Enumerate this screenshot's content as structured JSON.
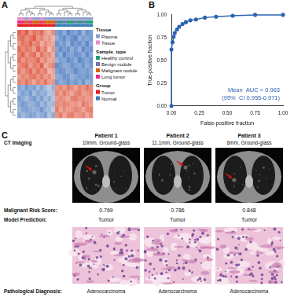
{
  "panel_labels": [
    "A",
    "B",
    "C"
  ],
  "heatmap": {
    "type": "heatmap",
    "color_range": [
      -2,
      2
    ],
    "colors": [
      "#4a7cc4",
      "#f7f4f0",
      "#e0553f"
    ],
    "cells": [
      [
        1.8,
        1.5,
        1.9,
        1.2,
        1.6,
        1.4,
        1.7,
        1.1,
        0.9,
        1.3,
        -1.4,
        -1.6,
        -1.2,
        -1.8,
        -1.5,
        -1.3,
        -1.7,
        -1.1,
        -1.6,
        -1.4
      ],
      [
        1.5,
        1.7,
        1.3,
        1.6,
        1.9,
        1.2,
        1.4,
        1.0,
        1.2,
        0.8,
        -1.2,
        -1.5,
        -1.7,
        -1.3,
        -1.6,
        -1.8,
        -1.2,
        -1.4,
        -1.3,
        -1.5
      ],
      [
        1.2,
        1.6,
        1.4,
        1.8,
        1.3,
        1.5,
        0.9,
        1.3,
        1.1,
        1.0,
        -1.6,
        -1.3,
        -1.5,
        -1.1,
        -1.7,
        -1.4,
        -1.6,
        -1.3,
        -1.8,
        -1.2
      ],
      [
        1.7,
        1.3,
        1.6,
        1.4,
        1.1,
        1.8,
        1.2,
        1.5,
        0.7,
        1.2,
        -1.3,
        -1.7,
        -1.4,
        -1.6,
        -1.2,
        -1.5,
        -1.1,
        -1.7,
        -1.4,
        -1.6
      ],
      [
        1.4,
        1.8,
        1.2,
        1.5,
        1.7,
        1.0,
        1.6,
        1.2,
        1.3,
        0.9,
        -1.5,
        -1.2,
        -1.8,
        -1.4,
        -1.3,
        -1.6,
        -1.5,
        -1.2,
        -1.7,
        -1.3
      ],
      [
        1.6,
        1.2,
        1.5,
        1.3,
        1.4,
        1.7,
        1.1,
        1.4,
        1.0,
        1.1,
        -1.1,
        -1.4,
        -1.3,
        -1.7,
        -1.5,
        -1.2,
        -1.8,
        -1.5,
        -1.3,
        -1.6
      ],
      [
        1.3,
        1.5,
        1.7,
        1.1,
        1.5,
        1.3,
        1.8,
        0.9,
        1.2,
        1.4,
        -1.7,
        -1.5,
        -1.2,
        -1.3,
        -1.6,
        -1.4,
        -1.3,
        -1.6,
        -1.2,
        -1.5
      ],
      [
        1.5,
        1.1,
        1.4,
        1.7,
        1.2,
        1.6,
        1.3,
        1.5,
        0.8,
        1.0,
        -1.4,
        -1.6,
        -1.5,
        -1.2,
        -1.4,
        -1.7,
        -1.4,
        -1.3,
        -1.5,
        -1.2
      ],
      [
        1.1,
        1.4,
        1.2,
        1.5,
        1.6,
        1.2,
        1.5,
        1.1,
        1.3,
        0.9,
        -1.2,
        -1.3,
        -1.6,
        -1.5,
        -1.1,
        -1.3,
        -1.5,
        -1.4,
        -1.6,
        -1.4
      ],
      [
        1.4,
        1.2,
        1.6,
        1.3,
        1.0,
        1.4,
        1.2,
        1.6,
        1.1,
        1.2,
        -1.5,
        -1.2,
        -1.4,
        -1.6,
        -1.3,
        -1.5,
        -1.2,
        -1.6,
        -1.1,
        -1.3
      ],
      [
        -1.3,
        -1.1,
        -1.5,
        -1.2,
        -1.4,
        -1.0,
        -1.3,
        -0.9,
        -0.7,
        -1.1,
        1.2,
        1.4,
        1.1,
        1.5,
        1.3,
        1.0,
        1.4,
        1.2,
        1.6,
        1.3
      ],
      [
        -1.1,
        -1.4,
        -1.2,
        -1.5,
        -1.0,
        -1.3,
        -1.1,
        -1.2,
        -0.8,
        -0.9,
        1.4,
        1.1,
        1.5,
        1.2,
        1.0,
        1.3,
        1.5,
        1.1,
        1.2,
        1.4
      ],
      [
        -1.4,
        -1.2,
        -1.0,
        -1.3,
        -1.5,
        -1.1,
        -1.4,
        -1.0,
        -1.2,
        -0.8,
        1.1,
        1.3,
        1.2,
        1.0,
        1.4,
        1.5,
        1.2,
        1.3,
        1.1,
        1.2
      ],
      [
        -1.2,
        -1.5,
        -1.3,
        -1.1,
        -1.2,
        -1.4,
        -1.0,
        -1.3,
        -0.9,
        -1.0,
        1.3,
        1.2,
        1.4,
        1.3,
        1.1,
        1.2,
        1.0,
        1.5,
        1.3,
        1.1
      ],
      [
        -1.0,
        -1.3,
        -1.4,
        -1.2,
        -1.1,
        -1.2,
        -1.5,
        -1.1,
        -1.0,
        -0.7,
        1.5,
        1.0,
        1.3,
        1.1,
        1.2,
        1.4,
        1.3,
        1.0,
        1.4,
        1.5
      ],
      [
        -1.3,
        -1.0,
        -1.2,
        -1.4,
        -1.3,
        -1.0,
        -1.2,
        -1.4,
        -0.8,
        -1.2,
        1.2,
        1.5,
        1.0,
        1.4,
        1.5,
        1.1,
        1.2,
        1.4,
        1.0,
        1.3
      ]
    ],
    "annotations": [
      {
        "name": "Tissue",
        "levels": [
          {
            "label": "Plasma",
            "color": "#8da0cb"
          },
          {
            "label": "Tissue",
            "color": "#e78ac3"
          }
        ],
        "values": [
          "Tissue",
          "Tissue",
          "Plasma",
          "Tissue",
          "Plasma",
          "Plasma",
          "Tissue",
          "Plasma",
          "Plasma",
          "Plasma",
          "Plasma",
          "Plasma",
          "Plasma",
          "Plasma",
          "Plasma",
          "Plasma",
          "Plasma",
          "Plasma",
          "Plasma",
          "Plasma"
        ]
      },
      {
        "name": "Sample_type",
        "levels": [
          {
            "label": "Healthy control",
            "color": "#1b9e77"
          },
          {
            "label": "Benign nodule",
            "color": "#7570b3"
          },
          {
            "label": "Malignant nodule",
            "color": "#d95f02"
          },
          {
            "label": "Lung tumor",
            "color": "#e7298a"
          }
        ],
        "values": [
          "Lung tumor",
          "Lung tumor",
          "Malignant nodule",
          "Lung tumor",
          "Malignant nodule",
          "Malignant nodule",
          "Lung tumor",
          "Malignant nodule",
          "Malignant nodule",
          "Malignant nodule",
          "Benign nodule",
          "Healthy control",
          "Benign nodule",
          "Healthy control",
          "Healthy control",
          "Benign nodule",
          "Healthy control",
          "Benign nodule",
          "Healthy control",
          "Healthy control"
        ]
      },
      {
        "name": "Group",
        "levels": [
          {
            "label": "Tumor",
            "color": "#e41a1c"
          },
          {
            "label": "Normal",
            "color": "#377eb8"
          }
        ],
        "values": [
          "Tumor",
          "Tumor",
          "Tumor",
          "Tumor",
          "Tumor",
          "Tumor",
          "Tumor",
          "Tumor",
          "Tumor",
          "Tumor",
          "Normal",
          "Normal",
          "Normal",
          "Normal",
          "Normal",
          "Normal",
          "Normal",
          "Normal",
          "Normal",
          "Normal"
        ]
      }
    ]
  },
  "chart_data": {
    "type": "line",
    "x_label": "False-positive fraction",
    "y_label": "True-positive fraction",
    "x": [
      0,
      0,
      0.01,
      0.02,
      0.03,
      0.05,
      0.07,
      0.1,
      0.13,
      0.17,
      0.22,
      0.3,
      0.4,
      0.55,
      0.75,
      1
    ],
    "values": [
      0,
      0.62,
      0.7,
      0.76,
      0.8,
      0.84,
      0.87,
      0.9,
      0.92,
      0.94,
      0.95,
      0.97,
      0.98,
      0.99,
      1,
      1
    ],
    "color": "#2b62b0",
    "marker": "circle",
    "xlim": [
      0,
      1
    ],
    "ylim": [
      0,
      1
    ],
    "xticks": [
      {
        "value": 0,
        "label": "0.00"
      },
      {
        "value": 0.25,
        "label": "0.25"
      },
      {
        "value": 0.5,
        "label": "0.50"
      },
      {
        "value": 0.75,
        "label": "0.75"
      },
      {
        "value": 1,
        "label": "1.00"
      }
    ],
    "yticks": [
      {
        "value": 0,
        "label": "0.00"
      },
      {
        "value": 0.25,
        "label": "0.25"
      },
      {
        "value": 0.5,
        "label": "0.50"
      },
      {
        "value": 0.75,
        "label": "0.75"
      },
      {
        "value": 1,
        "label": "1.00"
      }
    ],
    "annotations": [
      "Mean  AUC = 0.963",
      "(95%  CI 0.955-0.971)"
    ],
    "grid": false
  },
  "cases": {
    "row_labels": {
      "imaging": "CT Imaging",
      "score": "Malignant Risk Score:",
      "prediction": "Model Prediction:",
      "diagnosis": "Pathological Diagnosis:"
    },
    "patients": [
      {
        "name": "Patient 1",
        "ct": "10mm, Ground-glass",
        "score": 0.769,
        "prediction": "Tumor",
        "diagnosis": "Adenocarcinoma"
      },
      {
        "name": "Patient 2",
        "ct": "11.1mm, Ground-glass",
        "score": 0.786,
        "prediction": "Tumor",
        "diagnosis": "Adenocarcinoma"
      },
      {
        "name": "Patient 3",
        "ct": "6mm, Ground-glass",
        "score": 0.848,
        "prediction": "Tumor",
        "diagnosis": "Adenocarcinoma"
      }
    ]
  }
}
